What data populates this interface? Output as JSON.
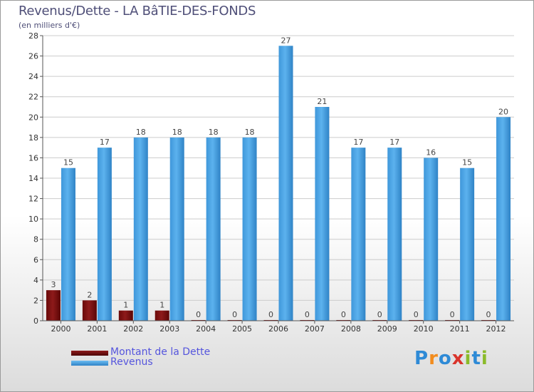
{
  "header": {
    "title": "Revenus/Dette - LA BâTIE-DES-FONDS",
    "subtitle": "(en milliers d'€)"
  },
  "legend": {
    "debt_label": "Montant de la Dette",
    "revenue_label": "Revenus"
  },
  "logo": {
    "text": "Proxiti"
  },
  "colors": {
    "debt": "#7a0f0f",
    "revenue": "#4aa3e6",
    "grid": "#cccccc",
    "axis": "#555555",
    "legend_text": "#5555dd"
  },
  "chart_data": {
    "type": "bar",
    "title": "Revenus/Dette - LA BâTIE-DES-FONDS",
    "subtitle": "(en milliers d'€)",
    "xlabel": "",
    "ylabel": "",
    "ylim": [
      0,
      28
    ],
    "yticks": [
      0,
      2,
      4,
      6,
      8,
      10,
      12,
      14,
      16,
      18,
      20,
      22,
      24,
      26,
      28
    ],
    "grid": true,
    "legend_position": "bottom-left",
    "categories": [
      "2000",
      "2001",
      "2002",
      "2003",
      "2004",
      "2005",
      "2006",
      "2007",
      "2008",
      "2009",
      "2010",
      "2011",
      "2012"
    ],
    "series": [
      {
        "name": "Montant de la Dette",
        "values": [
          3,
          2,
          1,
          1,
          0,
          0,
          0,
          0,
          0,
          0,
          0,
          0,
          0
        ]
      },
      {
        "name": "Revenus",
        "values": [
          15,
          17,
          18,
          18,
          18,
          18,
          27,
          21,
          17,
          17,
          16,
          15,
          20
        ]
      }
    ]
  }
}
